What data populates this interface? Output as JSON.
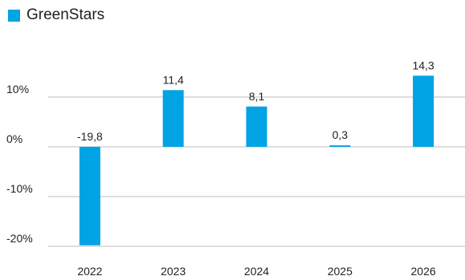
{
  "chart_data": {
    "type": "bar",
    "categories": [
      "2022",
      "2023",
      "2024",
      "2025",
      "2026"
    ],
    "series": [
      {
        "name": "GreenStars",
        "values": [
          -19.8,
          11.4,
          8.1,
          0.3,
          14.3
        ],
        "data_labels": [
          "-19,8",
          "11,4",
          "8,1",
          "0,3",
          "14,3"
        ],
        "color": "#00a4e4"
      }
    ],
    "y_ticks": [
      {
        "value": 10,
        "label": "10%"
      },
      {
        "value": 0,
        "label": "0%"
      },
      {
        "value": -10,
        "label": "-10%"
      },
      {
        "value": -20,
        "label": "-20%"
      }
    ],
    "ylim": [
      -20,
      10
    ],
    "grid": true,
    "legend_position": "top-left",
    "gridline_color": "#bdbdbd"
  }
}
